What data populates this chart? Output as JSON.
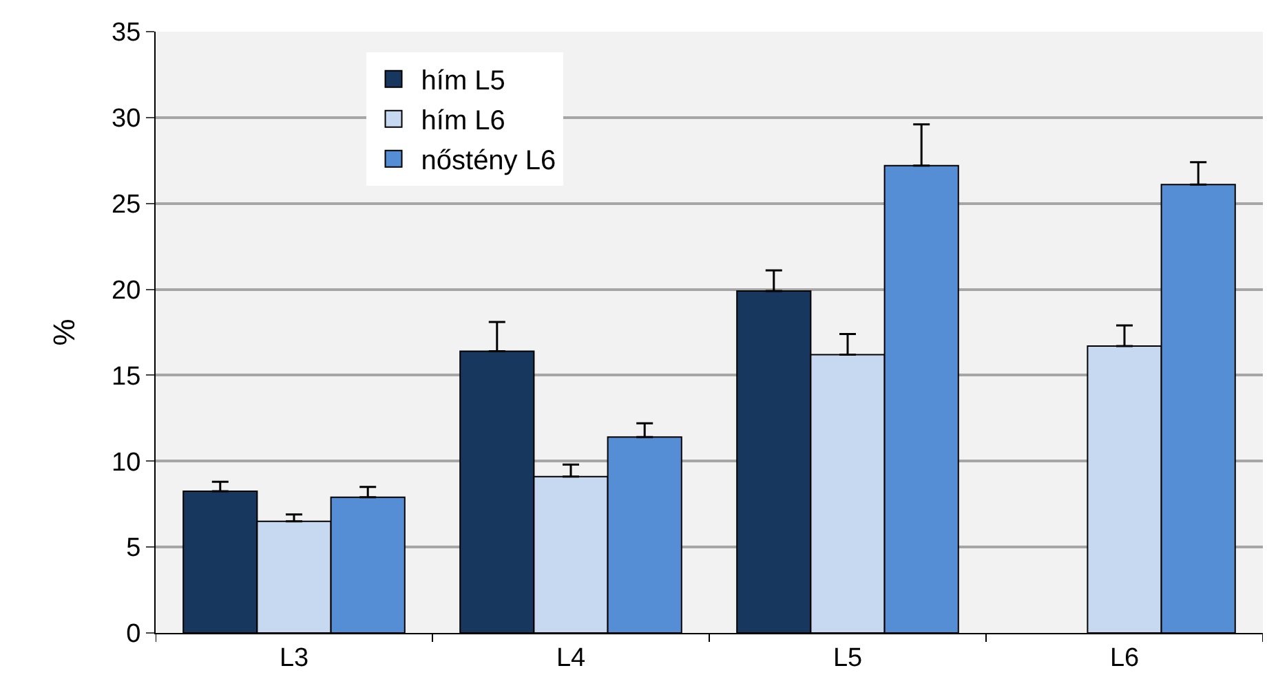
{
  "chart_data": {
    "type": "bar",
    "ylabel": "%",
    "categories": [
      "L3",
      "L4",
      "L5",
      "L6"
    ],
    "series": [
      {
        "name": "hím L5",
        "color": "#17375e",
        "values": [
          8.25,
          16.4,
          19.9,
          null
        ],
        "errors": [
          [
            8.25,
            8.8
          ],
          [
            16.4,
            18.1
          ],
          [
            19.9,
            21.1
          ],
          null
        ]
      },
      {
        "name": "hím L6",
        "color": "#c6d9f1",
        "values": [
          6.5,
          9.1,
          16.2,
          16.7
        ],
        "errors": [
          [
            6.5,
            6.9
          ],
          [
            9.1,
            9.8
          ],
          [
            16.2,
            17.4
          ],
          [
            16.7,
            17.9
          ]
        ]
      },
      {
        "name": "nőstény L6",
        "color": "#558ed5",
        "values": [
          7.9,
          11.4,
          27.2,
          26.1
        ],
        "errors": [
          [
            7.9,
            8.5
          ],
          [
            11.4,
            12.2
          ],
          [
            27.2,
            29.6
          ],
          [
            26.1,
            27.4
          ]
        ]
      }
    ],
    "ylim": [
      0,
      35
    ],
    "yticks": [
      0,
      5,
      10,
      15,
      20,
      25,
      30,
      35
    ],
    "grid": "y",
    "legend": "top left"
  }
}
